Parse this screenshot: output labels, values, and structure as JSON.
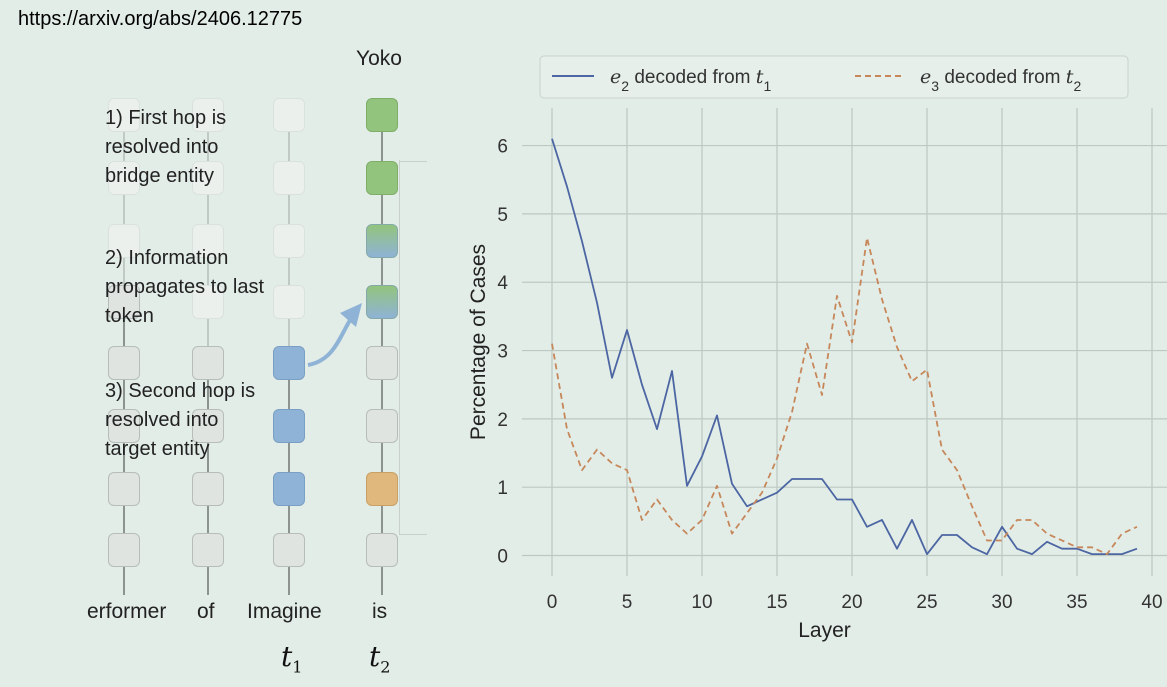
{
  "source_url": "https://arxiv.org/abs/2406.12775",
  "diagram": {
    "output_token": "Yoko",
    "annotations": [
      "3) Second hop is\nresolved into\ntarget entity",
      "2) Information\npropagates to last\ntoken",
      "1) First hop is\nresolved into\nbridge entity"
    ],
    "tokens": [
      "erformer",
      "of",
      "Imagine",
      "is"
    ],
    "position_labels": [
      {
        "var": "t",
        "sub": "1"
      },
      {
        "var": "t",
        "sub": "2"
      }
    ],
    "colors": {
      "bridge_blue": "#8fb3d6",
      "target_green": "#93c47d",
      "orange": "#e0b77c",
      "neutral": "#dfe4e0",
      "arrow": "#8fb3d6"
    }
  },
  "chart_data": {
    "type": "line",
    "xlabel": "Layer",
    "ylabel": "Percentage of Cases",
    "xlim": [
      -2,
      41
    ],
    "ylim": [
      -0.3,
      6.55
    ],
    "xticks": [
      0,
      5,
      10,
      15,
      20,
      25,
      30,
      35,
      40
    ],
    "yticks": [
      0,
      1,
      2,
      3,
      4,
      5,
      6
    ],
    "grid": true,
    "legend_position": "top",
    "x": [
      0,
      1,
      2,
      3,
      4,
      5,
      6,
      7,
      8,
      9,
      10,
      11,
      12,
      13,
      14,
      15,
      16,
      17,
      18,
      19,
      20,
      21,
      22,
      23,
      24,
      25,
      26,
      27,
      28,
      29,
      30,
      31,
      32,
      33,
      34,
      35,
      36,
      37,
      38,
      39
    ],
    "series": [
      {
        "name_parts": {
          "var": "e",
          "sub": "2",
          "mid": " decoded from ",
          "var2": "t",
          "sub2": "1"
        },
        "color": "#4c66a3",
        "style": "solid",
        "values": [
          6.1,
          5.4,
          4.6,
          3.7,
          2.6,
          3.3,
          2.5,
          1.85,
          2.7,
          1.02,
          1.45,
          2.05,
          1.05,
          0.72,
          0.82,
          0.92,
          1.12,
          1.12,
          1.12,
          0.82,
          0.82,
          0.42,
          0.52,
          0.1,
          0.52,
          0.02,
          0.3,
          0.3,
          0.12,
          0.02,
          0.42,
          0.1,
          0.02,
          0.2,
          0.1,
          0.1,
          0.02,
          0.02,
          0.02,
          0.1
        ]
      },
      {
        "name_parts": {
          "var": "e",
          "sub": "3",
          "mid": " decoded from ",
          "var2": "t",
          "sub2": "2"
        },
        "color": "#c6875a",
        "style": "dashed",
        "values": [
          3.1,
          1.85,
          1.25,
          1.55,
          1.35,
          1.25,
          0.52,
          0.82,
          0.52,
          0.32,
          0.52,
          1.02,
          0.32,
          0.62,
          0.92,
          1.42,
          2.1,
          3.1,
          2.35,
          3.8,
          3.12,
          4.65,
          3.75,
          3.05,
          2.55,
          2.72,
          1.55,
          1.25,
          0.72,
          0.22,
          0.22,
          0.52,
          0.52,
          0.32,
          0.22,
          0.12,
          0.12,
          0.02,
          0.32,
          0.42
        ]
      }
    ]
  }
}
